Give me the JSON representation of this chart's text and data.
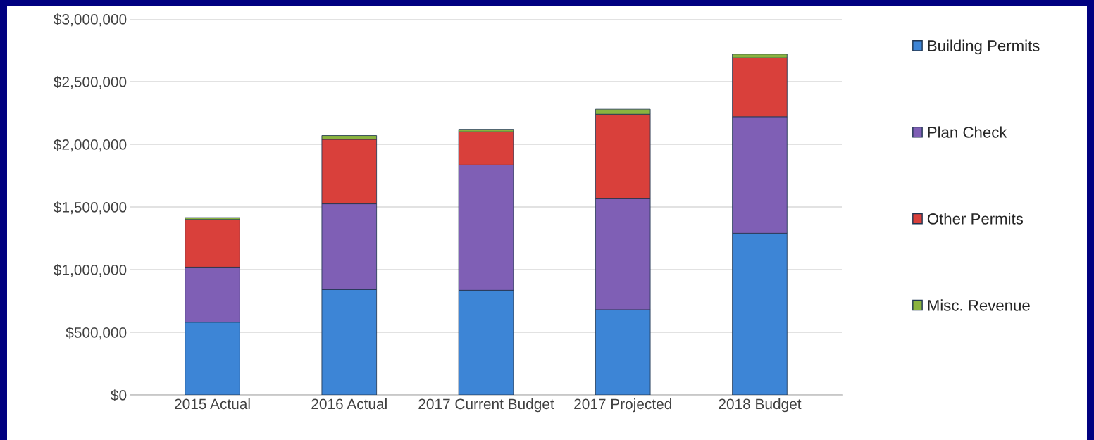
{
  "chart_data": {
    "type": "bar",
    "stacked": true,
    "categories": [
      "2015 Actual",
      "2016 Actual",
      "2017 Current Budget",
      "2017 Projected",
      "2018 Budget"
    ],
    "series": [
      {
        "name": "Building Permits",
        "color": "#3d85d6",
        "values": [
          580000,
          840000,
          835000,
          680000,
          1290000
        ]
      },
      {
        "name": "Plan Check",
        "color": "#7f5fb5",
        "values": [
          440000,
          685000,
          1000000,
          890000,
          930000
        ]
      },
      {
        "name": "Other Permits",
        "color": "#d9403b",
        "values": [
          380000,
          515000,
          265000,
          670000,
          470000
        ]
      },
      {
        "name": "Misc. Revenue",
        "color": "#8ab33f",
        "values": [
          15000,
          30000,
          20000,
          40000,
          30000
        ]
      }
    ],
    "ylim": [
      0,
      3000000
    ],
    "yticks": [
      {
        "value": 0,
        "label": "$0"
      },
      {
        "value": 500000,
        "label": "$500,000"
      },
      {
        "value": 1000000,
        "label": "$1,000,000"
      },
      {
        "value": 1500000,
        "label": "$1,500,000"
      },
      {
        "value": 2000000,
        "label": "$2,000,000"
      },
      {
        "value": 2500000,
        "label": "$2,500,000"
      },
      {
        "value": 3000000,
        "label": "$3,000,000"
      }
    ],
    "grid": "y",
    "legend": "right"
  }
}
